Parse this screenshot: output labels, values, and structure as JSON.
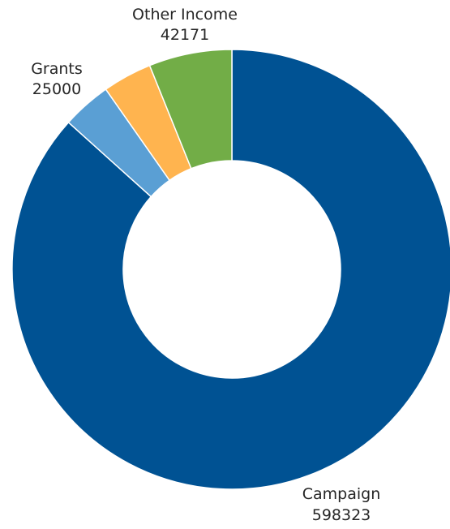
{
  "chart_data": {
    "type": "pie",
    "donut": true,
    "legend": "none",
    "slices": [
      {
        "name": "Campaign",
        "value": 598323,
        "color": "#005293",
        "label": true
      },
      {
        "name": "",
        "value": 25000,
        "color": "#5a9fd4",
        "label": false
      },
      {
        "name": "",
        "value": 25000,
        "color": "#ffb44f",
        "label": false
      },
      {
        "name": "Other Income",
        "value": 42171,
        "color": "#72ad47",
        "label": true
      }
    ],
    "annotations": [
      {
        "text": "Grants",
        "value": "25000"
      }
    ]
  }
}
